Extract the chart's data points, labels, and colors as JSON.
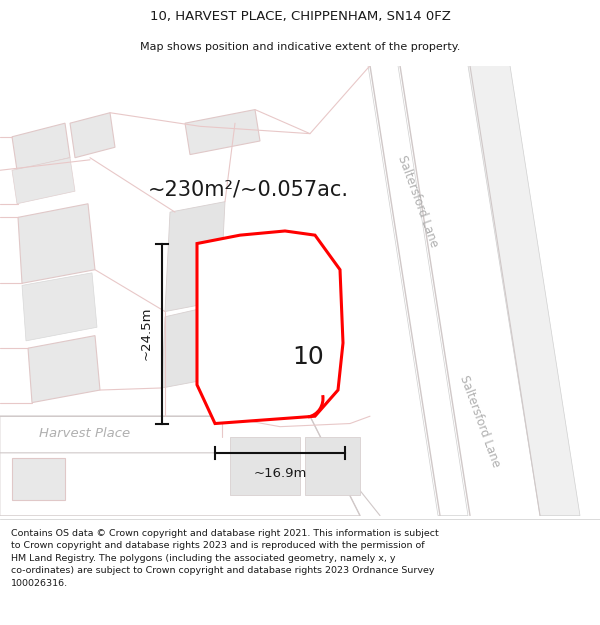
{
  "title_line1": "10, HARVEST PLACE, CHIPPENHAM, SN14 0FZ",
  "title_line2": "Map shows position and indicative extent of the property.",
  "area_label": "~230m²/~0.057ac.",
  "number_label": "10",
  "width_label": "~16.9m",
  "height_label": "~24.5m",
  "street_label_top": "Saltersford Lane",
  "street_label_bottom": "Saltersford Lane",
  "harvest_place_label": "Harvest Place",
  "footer_text": "Contains OS data © Crown copyright and database right 2021. This information is subject\nto Crown copyright and database rights 2023 and is reproduced with the permission of\nHM Land Registry. The polygons (including the associated geometry, namely x, y\nco-ordinates) are subject to Crown copyright and database rights 2023 Ordnance Survey\n100026316.",
  "highlight_color": "#ff0000",
  "text_color": "#1a1a1a",
  "dim_line_color": "#111111",
  "road_outline_color": "#e8c8c8",
  "building_fill": "#e8e8e8",
  "building_edge": "#e0c8c8",
  "road_fill": "#ffffff",
  "bg_color": "#f7f7f5",
  "street_label_color": "#b0b0b0"
}
